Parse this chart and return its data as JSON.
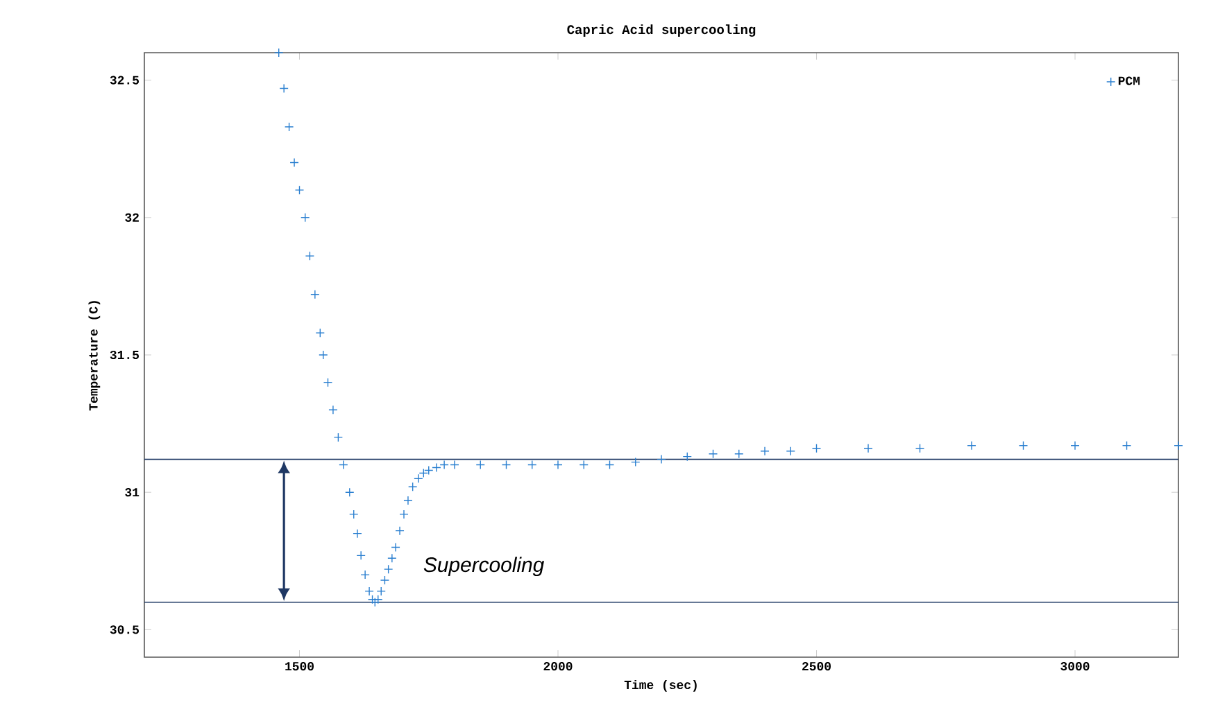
{
  "chart_data": {
    "type": "scatter",
    "title": "Capric Acid supercooling",
    "xlabel": "Time (sec)",
    "ylabel": "Temperature (C)",
    "xlim": [
      1200,
      3200
    ],
    "ylim": [
      30.4,
      32.6
    ],
    "xticks": [
      1500,
      2000,
      2500,
      3000
    ],
    "yticks": [
      30.5,
      31,
      31.5,
      32,
      32.5
    ],
    "marker": "cross",
    "legend": "top right",
    "grid": false,
    "series": [
      {
        "name": "PCM",
        "color": "#2a7fd0",
        "x": [
          1460,
          1470,
          1480,
          1490,
          1500,
          1511,
          1520,
          1530,
          1540,
          1546,
          1555,
          1565,
          1575,
          1585,
          1597,
          1605,
          1612,
          1619,
          1627,
          1635,
          1641,
          1646,
          1652,
          1658,
          1665,
          1672,
          1679,
          1686,
          1694,
          1702,
          1710,
          1719,
          1730,
          1740,
          1750,
          1765,
          1780,
          1800,
          1850,
          1900,
          1950,
          2000,
          2050,
          2100,
          2150,
          2200,
          2250,
          2300,
          2350,
          2400,
          2450,
          2500,
          2600,
          2700,
          2800,
          2900,
          3000,
          3100,
          3200
        ],
        "values": [
          32.6,
          32.47,
          32.33,
          32.2,
          32.1,
          32.0,
          31.86,
          31.72,
          31.58,
          31.5,
          31.4,
          31.3,
          31.2,
          31.1,
          31.0,
          30.92,
          30.85,
          30.77,
          30.7,
          30.64,
          30.61,
          30.6,
          30.61,
          30.64,
          30.68,
          30.72,
          30.76,
          30.8,
          30.86,
          30.92,
          30.97,
          31.02,
          31.05,
          31.07,
          31.08,
          31.09,
          31.1,
          31.1,
          31.1,
          31.1,
          31.1,
          31.1,
          31.1,
          31.1,
          31.11,
          31.12,
          31.13,
          31.14,
          31.14,
          31.15,
          31.15,
          31.16,
          31.16,
          31.16,
          31.17,
          31.17,
          31.17,
          31.17,
          31.17
        ]
      }
    ],
    "ref_lines": [
      {
        "axis": "y",
        "value": 31.12,
        "color": "#1f3864"
      },
      {
        "axis": "y",
        "value": 30.6,
        "color": "#1f3864"
      }
    ],
    "annotations": [
      "Supercooling"
    ]
  }
}
